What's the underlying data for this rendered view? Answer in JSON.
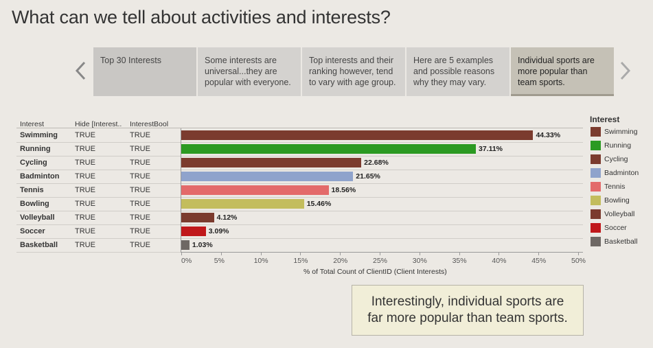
{
  "title": "What can we tell about activities and interests?",
  "story": {
    "points": [
      "Top 30 Interests",
      "Some interests are universal...they are popular with everyone.",
      "Top interests and their ranking however, tend to vary with age group.",
      "Here are 5 examples and possible reasons why they may vary.",
      "Individual sports are more popular than team sports."
    ],
    "active_index": 4
  },
  "table": {
    "headers": [
      "Interest",
      "Hide [Interest..",
      "InterestBool"
    ],
    "rows": [
      {
        "interest": "Swimming",
        "hide": "TRUE",
        "bool": "TRUE",
        "pct_label": "44.33%"
      },
      {
        "interest": "Running",
        "hide": "TRUE",
        "bool": "TRUE",
        "pct_label": "37.11%"
      },
      {
        "interest": "Cycling",
        "hide": "TRUE",
        "bool": "TRUE",
        "pct_label": "22.68%"
      },
      {
        "interest": "Badminton",
        "hide": "TRUE",
        "bool": "TRUE",
        "pct_label": "21.65%"
      },
      {
        "interest": "Tennis",
        "hide": "TRUE",
        "bool": "TRUE",
        "pct_label": "18.56%"
      },
      {
        "interest": "Bowling",
        "hide": "TRUE",
        "bool": "TRUE",
        "pct_label": "15.46%"
      },
      {
        "interest": "Volleyball",
        "hide": "TRUE",
        "bool": "TRUE",
        "pct_label": "4.12%"
      },
      {
        "interest": "Soccer",
        "hide": "TRUE",
        "bool": "TRUE",
        "pct_label": "3.09%"
      },
      {
        "interest": "Basketball",
        "hide": "TRUE",
        "bool": "TRUE",
        "pct_label": "1.03%"
      }
    ]
  },
  "chart_data": {
    "type": "bar",
    "orientation": "horizontal",
    "categories": [
      "Swimming",
      "Running",
      "Cycling",
      "Badminton",
      "Tennis",
      "Bowling",
      "Volleyball",
      "Soccer",
      "Basketball"
    ],
    "values": [
      44.33,
      37.11,
      22.68,
      21.65,
      18.56,
      15.46,
      4.12,
      3.09,
      1.03
    ],
    "colors": [
      "#7b3b2e",
      "#2b9a22",
      "#7b3b2e",
      "#8fa3cc",
      "#e36a6a",
      "#c3bd5d",
      "#7b3b2e",
      "#c0181b",
      "#6e6864"
    ],
    "xlabel": "% of Total Count of ClientID (Client Interests)",
    "xticks": [
      "0%",
      "5%",
      "10%",
      "15%",
      "20%",
      "25%",
      "30%",
      "35%",
      "40%",
      "45%",
      "50%"
    ],
    "xlim": [
      0,
      50
    ],
    "legend_title": "Interest",
    "legend_placement": "right"
  },
  "callout": {
    "line1": "Interestingly, individual sports are",
    "line2": "far more popular than team sports."
  }
}
